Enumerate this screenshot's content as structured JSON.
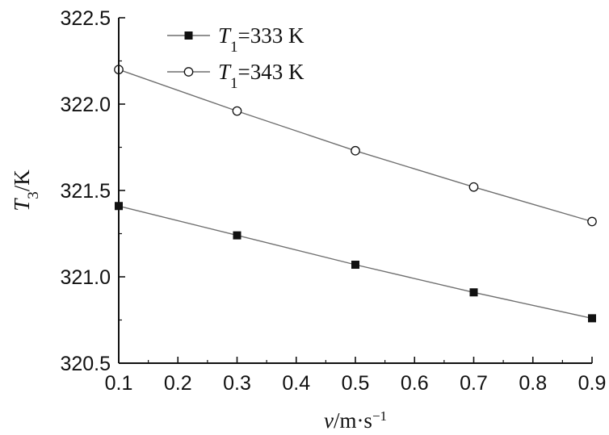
{
  "chart_data": {
    "type": "line",
    "title": "",
    "xlabel": "v/m·s⁻¹",
    "ylabel": "T₃/K",
    "xlim": [
      0.1,
      0.9
    ],
    "ylim": [
      320.5,
      322.5
    ],
    "x_ticks": [
      "0.1",
      "0.2",
      "0.3",
      "0.4",
      "0.5",
      "0.6",
      "0.7",
      "0.8",
      "0.9"
    ],
    "y_ticks": [
      "320.5",
      "321.0",
      "321.5",
      "322.0",
      "322.5"
    ],
    "x": [
      0.1,
      0.3,
      0.5,
      0.7,
      0.9
    ],
    "series": [
      {
        "name": "T₁=333 K",
        "values": [
          321.41,
          321.24,
          321.07,
          320.91,
          320.76
        ],
        "marker": "filled-square"
      },
      {
        "name": "T₁=343 K",
        "values": [
          322.2,
          321.96,
          321.73,
          321.52,
          321.32
        ],
        "marker": "open-circle"
      }
    ],
    "legend_position": "top-left",
    "grid": false,
    "colors": {
      "line": "#6f6f6f",
      "axis": "#111111",
      "marker": "#111111"
    }
  }
}
